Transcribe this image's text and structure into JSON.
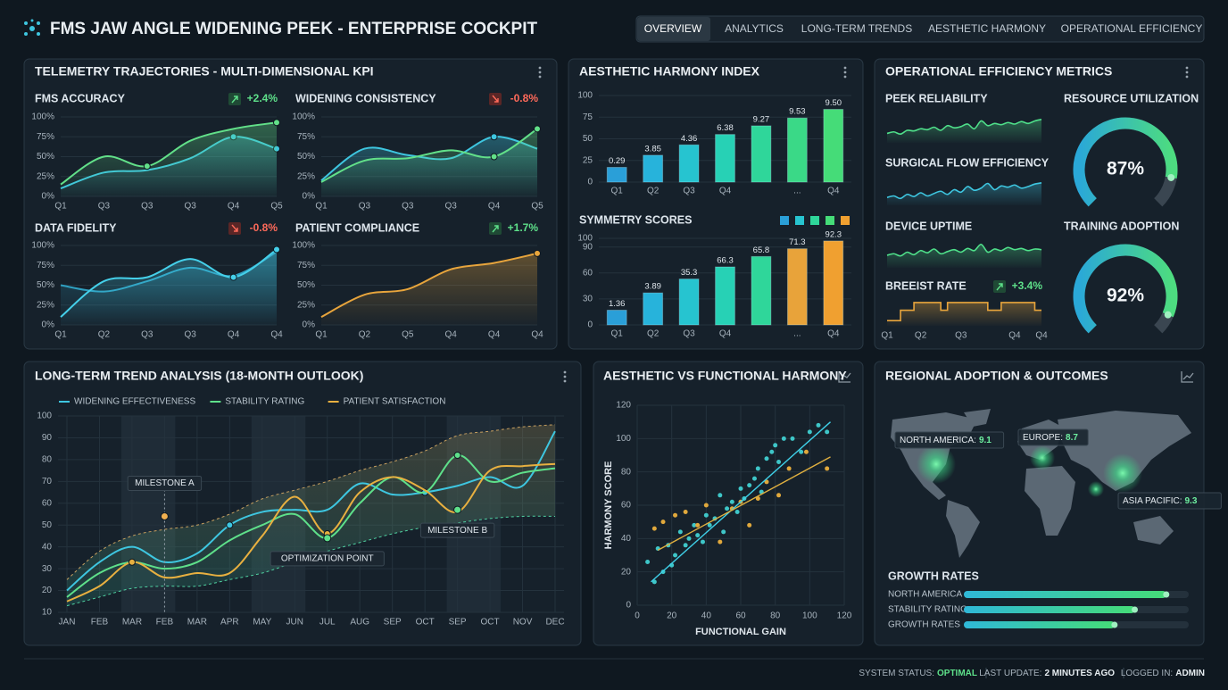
{
  "header": {
    "title": "FMS JAW ANGLE WIDENING PEEK - ENTERPRISE COCKPIT",
    "nav": [
      "OVERVIEW",
      "ANALYTICS",
      "LONG-TERM TRENDS",
      "AESTHETIC HARMONY",
      "OPERATIONAL EFFICIENCY"
    ]
  },
  "panels": [
    "TELEMETRY TRAJECTORIES - MULTI-DIMENSIONAL KPI",
    "OPERATIONAL EFFICIENCY METRICS",
    "REGIONAL ADOPTION & OUTCOMES"
  ],
  "chart_data": [
    {
      "type": "line",
      "title": "FMS ACCURACY",
      "change": "+2.4%",
      "trend": "up",
      "area": true,
      "categories": [
        "Q1",
        "Q3",
        "Q3",
        "Q3",
        "Q4",
        "Q5"
      ],
      "ylim": [
        0,
        100
      ],
      "yticks": [
        {
          "value": 0,
          "label": "0%"
        },
        {
          "value": 25,
          "label": "25%"
        },
        {
          "value": 50,
          "label": "50%"
        },
        {
          "value": 75,
          "label": "75%"
        },
        {
          "value": 100,
          "label": "100%"
        }
      ],
      "series": [
        {
          "color": "#3ec6e0",
          "values": [
            10,
            30,
            33,
            48,
            75,
            60
          ],
          "markers": [
            4,
            5
          ]
        },
        {
          "color": "#62e089",
          "values": [
            15,
            50,
            38,
            70,
            85,
            93
          ],
          "markers": [
            2,
            5
          ]
        }
      ]
    },
    {
      "type": "line",
      "title": "WIDENING CONSISTENCY",
      "change": "-0.8%",
      "trend": "down",
      "area": true,
      "categories": [
        "Q1",
        "Q3",
        "Q3",
        "Q3",
        "Q4",
        "Q5"
      ],
      "ylim": [
        0,
        100
      ],
      "yticks": [
        {
          "value": 0,
          "label": "0%"
        },
        {
          "value": 25,
          "label": "25%"
        },
        {
          "value": 50,
          "label": "50%"
        },
        {
          "value": 75,
          "label": "75%"
        },
        {
          "value": 100,
          "label": "100%"
        }
      ],
      "series": [
        {
          "color": "#3ec6e0",
          "values": [
            20,
            60,
            52,
            48,
            75,
            60
          ],
          "markers": [
            4
          ]
        },
        {
          "color": "#62e089",
          "values": [
            18,
            45,
            48,
            58,
            50,
            85
          ],
          "markers": [
            4,
            5
          ]
        }
      ]
    },
    {
      "type": "line",
      "title": "DATA FIDELITY",
      "change": "-0.8%",
      "trend": "down",
      "area": true,
      "categories": [
        "Q1",
        "Q2",
        "Q3",
        "Q3",
        "Q4",
        "Q4"
      ],
      "ylim": [
        0,
        100
      ],
      "yticks": [
        {
          "value": 0,
          "label": "0%"
        },
        {
          "value": 25,
          "label": "25%"
        },
        {
          "value": 50,
          "label": "50%"
        },
        {
          "value": 75,
          "label": "75%"
        },
        {
          "value": 100,
          "label": "100%"
        }
      ],
      "series": [
        {
          "color": "#2f9fc0",
          "values": [
            50,
            42,
            55,
            72,
            62,
            92
          ]
        },
        {
          "color": "#45d0ea",
          "values": [
            10,
            55,
            60,
            83,
            60,
            95
          ],
          "markers": [
            4,
            5
          ]
        }
      ]
    },
    {
      "type": "line",
      "title": "PATIENT COMPLIANCE",
      "change": "+1.7%",
      "trend": "up",
      "area": true,
      "categories": [
        "Q1",
        "Q2",
        "Q5",
        "Q4",
        "Q4",
        "Q4"
      ],
      "ylim": [
        0,
        100
      ],
      "yticks": [
        {
          "value": 0,
          "label": "0%"
        },
        {
          "value": 25,
          "label": "25%"
        },
        {
          "value": 50,
          "label": "50%"
        },
        {
          "value": 75,
          "label": "75%"
        },
        {
          "value": 100,
          "label": "100%"
        }
      ],
      "series": [
        {
          "color": "#e8a53c",
          "values": [
            10,
            38,
            45,
            70,
            78,
            90
          ],
          "markers": [
            5
          ]
        }
      ]
    },
    {
      "type": "bar",
      "title": "AESTHETIC HARMONY INDEX",
      "categories": [
        "Q1",
        "Q2",
        "Q3",
        "Q4",
        null,
        "...",
        "Q4"
      ],
      "values": [
        17,
        31,
        43,
        55,
        65,
        74,
        84
      ],
      "bar_labels": [
        "0.29",
        "3.85",
        "4.36",
        "6.38",
        "9.27",
        "9.53",
        "9.50"
      ],
      "colors": [
        "#2a9fd8",
        "#27b3db",
        "#26c4d0",
        "#27d1b5",
        "#2fd69a",
        "#3ad987",
        "#45dc78"
      ],
      "ylim": [
        0,
        100
      ],
      "yticks": [
        0,
        25,
        50,
        75,
        100
      ]
    },
    {
      "type": "bar",
      "title": "SYMMETRY SCORES",
      "categories": [
        "Q1",
        "Q2",
        "Q3",
        "Q4",
        null,
        "...",
        "Q4"
      ],
      "values": [
        17,
        37,
        53,
        67,
        79,
        88,
        97
      ],
      "bar_labels": [
        "1.36",
        "3.89",
        "35.3",
        "66.3",
        "65.8",
        "71.3",
        "92.3"
      ],
      "colors": [
        "#2a9fd8",
        "#27b3db",
        "#26c4d0",
        "#27d1b5",
        "#2fd69a",
        "#e8a33a",
        "#f0a030"
      ],
      "legend_colors": [
        "#2a9fd8",
        "#27c4d0",
        "#2fd69a",
        "#45dc78",
        "#f0a030"
      ],
      "ylim": [
        0,
        100
      ],
      "yticks": [
        0,
        30,
        60,
        90,
        100
      ]
    },
    {
      "type": "line",
      "title": "PEEK RELIABILITY",
      "area": true,
      "width": 1.6,
      "ylim": [
        0,
        100
      ],
      "categories": [
        null,
        null,
        null,
        null,
        null,
        null,
        null,
        null,
        null,
        null,
        null,
        null,
        null,
        null,
        null,
        null,
        null,
        null,
        null,
        null,
        null,
        null,
        null,
        null
      ],
      "series": [
        {
          "color": "#4fe08a",
          "values": [
            30,
            35,
            28,
            40,
            38,
            45,
            42,
            50,
            40,
            55,
            48,
            52,
            60,
            45,
            70,
            55,
            62,
            58,
            65,
            60,
            68,
            62,
            70,
            75
          ]
        }
      ]
    },
    {
      "type": "line",
      "title": "SURGICAL FLOW EFFICIENCY",
      "area": true,
      "width": 1.6,
      "ylim": [
        0,
        100
      ],
      "categories": [
        null,
        null,
        null,
        null,
        null,
        null,
        null,
        null,
        null,
        null,
        null,
        null,
        null,
        null,
        null,
        null,
        null,
        null,
        null,
        null,
        null,
        null,
        null,
        null
      ],
      "series": [
        {
          "color": "#3ec6e0",
          "values": [
            25,
            30,
            22,
            35,
            28,
            40,
            30,
            38,
            45,
            35,
            50,
            42,
            60,
            48,
            55,
            70,
            50,
            62,
            58,
            65,
            55,
            60,
            68,
            72
          ]
        }
      ]
    },
    {
      "type": "line",
      "title": "DEVICE UPTIME",
      "area": true,
      "width": 1.6,
      "ylim": [
        0,
        100
      ],
      "categories": [
        null,
        null,
        null,
        null,
        null,
        null,
        null,
        null,
        null,
        null,
        null,
        null,
        null,
        null,
        null,
        null,
        null,
        null,
        null,
        null,
        null,
        null,
        null,
        null
      ],
      "series": [
        {
          "color": "#4fe08a",
          "values": [
            40,
            45,
            38,
            50,
            42,
            55,
            48,
            60,
            45,
            52,
            58,
            50,
            62,
            55,
            75,
            50,
            60,
            55,
            65,
            58,
            62,
            55,
            60,
            58
          ]
        }
      ]
    },
    {
      "type": "line",
      "title": "BREEIST RATE",
      "change": "+3.4%",
      "trend": "up",
      "step": true,
      "area": true,
      "width": 1.6,
      "ylim": [
        0,
        100
      ],
      "categories": [
        "Q1",
        null,
        null,
        null,
        null,
        "Q2",
        null,
        null,
        null,
        null,
        null,
        "Q3",
        null,
        null,
        null,
        null,
        null,
        null,
        null,
        "Q4",
        null,
        null,
        null,
        "Q4"
      ],
      "series": [
        {
          "color": "#e8a53c",
          "values": [
            20,
            20,
            60,
            60,
            90,
            90,
            90,
            90,
            60,
            90,
            90,
            90,
            90,
            90,
            90,
            60,
            60,
            90,
            90,
            90,
            90,
            90,
            60,
            60
          ]
        }
      ]
    },
    {
      "type": "gauge",
      "title": "RESOURCE UTILIZATION",
      "value": 87,
      "value_label": "87%",
      "range": [
        0,
        100
      ],
      "colors": [
        "#2aa8d8",
        "#4ddc80"
      ]
    },
    {
      "type": "gauge",
      "title": "TRAINING ADOPTION",
      "value": 92,
      "value_label": "92%",
      "range": [
        0,
        100
      ],
      "colors": [
        "#2aa8d8",
        "#4ddc80"
      ]
    },
    {
      "type": "line",
      "title": "LONG-TERM TREND ANALYSIS (18-MONTH OUTLOOK)",
      "categories": [
        "JAN",
        "FEB",
        "MAR",
        "FEB",
        "MAR",
        "APR",
        "MAY",
        "JUN",
        "JUL",
        "AUG",
        "SEP",
        "OCT",
        "SEP",
        "OCT",
        "NOV",
        "DEC"
      ],
      "ylim": [
        10,
        100
      ],
      "yticks": [
        10,
        20,
        30,
        40,
        50,
        60,
        70,
        80,
        90,
        100
      ],
      "series": [
        {
          "name": "WIDENING EFFECTIVENESS",
          "color": "#3ec6e0",
          "values": [
            20,
            33,
            40,
            33,
            37,
            50,
            56,
            57,
            57,
            69,
            64,
            65,
            68,
            72,
            68,
            93
          ],
          "markers": [
            5,
            11
          ]
        },
        {
          "name": "STABILITY RATING",
          "color": "#5ee08a",
          "values": [
            17,
            28,
            33,
            30,
            33,
            43,
            50,
            55,
            44,
            60,
            72,
            65,
            82,
            70,
            74,
            76
          ],
          "markers": [
            12
          ]
        },
        {
          "name": "PATIENT SATISFACTION",
          "color": "#e8b040",
          "values": [
            15,
            22,
            33,
            26,
            28,
            28,
            45,
            63,
            46,
            65,
            72,
            66,
            56,
            75,
            77,
            78
          ],
          "markers": [
            2,
            8
          ]
        }
      ],
      "band": {
        "upper": [
          25,
          38,
          45,
          48,
          50,
          55,
          62,
          66,
          70,
          75,
          79,
          84,
          91,
          93,
          95,
          96
        ],
        "lower": [
          13,
          17,
          21,
          22,
          22,
          25,
          28,
          33,
          38,
          42,
          46,
          49,
          51,
          53,
          54,
          54
        ]
      },
      "annotations": [
        {
          "label": "MILESTONE A",
          "index": 3,
          "value": 54,
          "color": "#f0b050"
        },
        {
          "label": "OPTIMIZATION POINT",
          "index": 8,
          "value": 44,
          "color": "#5ee08a"
        },
        {
          "label": "MILESTONE B",
          "index": 12,
          "value": 57,
          "color": "#5ee08a"
        }
      ]
    },
    {
      "type": "scatter",
      "title": "AESTHETIC VS FUNCTIONAL HARMONY",
      "x_label": "FUNCTIONAL GAIN",
      "y_label": "HARMONY SCORE",
      "xlim": [
        0,
        120
      ],
      "ylim": [
        0,
        120
      ],
      "xticks": [
        0,
        20,
        40,
        60,
        80,
        100,
        120
      ],
      "yticks": [
        0,
        20,
        40,
        60,
        80,
        100,
        120
      ],
      "grid": true,
      "series": [
        {
          "color": "#3ec6c8",
          "x": [
            6,
            10,
            12,
            15,
            18,
            20,
            22,
            25,
            28,
            30,
            33,
            35,
            38,
            40,
            42,
            45,
            48,
            50,
            52,
            55,
            58,
            60,
            62,
            65,
            68,
            70,
            72,
            75,
            78,
            80,
            82,
            85,
            90,
            95,
            100,
            105,
            110
          ],
          "values": [
            26,
            14,
            34,
            20,
            36,
            24,
            30,
            44,
            36,
            40,
            48,
            42,
            38,
            54,
            48,
            52,
            66,
            44,
            58,
            62,
            56,
            70,
            64,
            72,
            76,
            82,
            68,
            88,
            92,
            96,
            86,
            100,
            100,
            92,
            104,
            108,
            104
          ]
        },
        {
          "color": "#e0a83c",
          "x": [
            10,
            15,
            22,
            28,
            35,
            40,
            48,
            55,
            60,
            65,
            70,
            75,
            82,
            88,
            98,
            110
          ],
          "values": [
            46,
            50,
            54,
            56,
            48,
            60,
            38,
            58,
            62,
            48,
            64,
            74,
            66,
            82,
            92,
            82
          ]
        }
      ],
      "trend_lines": [
        {
          "color": "#3fd0e8",
          "x": [
            8,
            112
          ],
          "y": [
            14,
            110
          ]
        },
        {
          "color": "#e0b040",
          "x": [
            12,
            112
          ],
          "y": [
            33,
            89
          ]
        }
      ]
    },
    {
      "type": "bar",
      "orientation": "horizontal",
      "title": "GROWTH RATES",
      "categories": [
        "NORTH AMERICA",
        "STABILITY RATING",
        "GROWTH RATES"
      ],
      "values": [
        90,
        76,
        67
      ],
      "xlim": [
        0,
        100
      ],
      "colors": [
        "#2fb8d8",
        "#45dc78"
      ]
    }
  ],
  "map": {
    "regions": [
      {
        "label": "NORTH AMERICA:",
        "value": 9.1
      },
      {
        "label": "EUROPE:",
        "value": 8.7
      },
      {
        "label": "ASIA PACIFIC:",
        "value": 9.3
      }
    ]
  },
  "footer": [
    {
      "label": "SYSTEM STATUS:",
      "value": "OPTIMAL"
    },
    {
      "label": "LAST UPDATE:",
      "value": "2 MINUTES AGO"
    },
    {
      "label": "LOGGED IN:",
      "value": "ADMIN"
    }
  ]
}
